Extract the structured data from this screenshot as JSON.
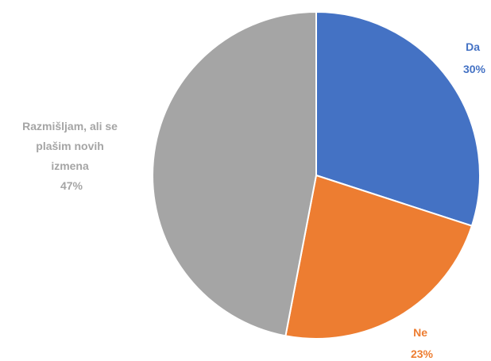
{
  "chart_data": {
    "type": "pie",
    "slices": [
      {
        "label": "Da",
        "value": 30,
        "value_text": "30%",
        "color": "#4472C4"
      },
      {
        "label": "Ne",
        "value": 23,
        "value_text": "23%",
        "color": "#ED7D31"
      },
      {
        "label_lines": [
          "Razmišljam, ali se",
          "plašim novih",
          "izmena"
        ],
        "value": 47,
        "value_text": "47%",
        "color": "#A5A5A5"
      }
    ],
    "start_angle_deg": 0,
    "direction": "clockwise",
    "legend": "none"
  }
}
